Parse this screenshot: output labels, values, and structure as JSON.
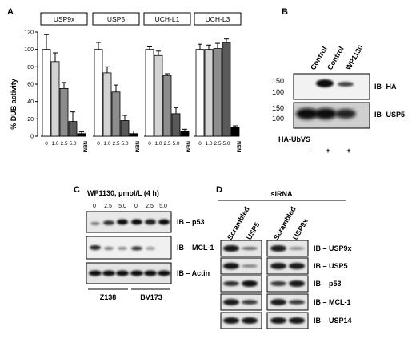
{
  "panel_a": {
    "letter": "A",
    "ylabel": "% DUB activity",
    "yticks": [
      "0",
      "20",
      "40",
      "60",
      "80",
      "100",
      "120"
    ],
    "groups": [
      {
        "name": "USP9x",
        "values": [
          100,
          86,
          55,
          17,
          3
        ],
        "errors": [
          17,
          10,
          7,
          11,
          2
        ]
      },
      {
        "name": "USP5",
        "values": [
          100,
          73,
          51,
          18,
          3
        ],
        "errors": [
          8,
          7,
          8,
          6,
          3
        ]
      },
      {
        "name": "UCH-L1",
        "values": [
          100,
          93,
          70,
          26,
          6
        ],
        "errors": [
          3,
          5,
          2,
          7,
          2
        ]
      },
      {
        "name": "UCH-L3",
        "values": [
          100,
          100,
          101,
          108,
          10
        ],
        "errors": [
          6,
          5,
          6,
          4,
          2
        ]
      }
    ],
    "xticks": [
      "0",
      "1.0",
      "2.5",
      "5.0",
      "NEM"
    ]
  },
  "chart_data": {
    "type": "bar",
    "ylabel": "% DUB activity",
    "ylim": [
      0,
      120
    ],
    "categories": [
      "0",
      "1.0",
      "2.5",
      "5.0",
      "NEM"
    ],
    "series": [
      {
        "name": "USP9x",
        "values": [
          100,
          86,
          55,
          17,
          3
        ]
      },
      {
        "name": "USP5",
        "values": [
          100,
          73,
          51,
          18,
          3
        ]
      },
      {
        "name": "UCH-L1",
        "values": [
          100,
          93,
          70,
          26,
          6
        ]
      },
      {
        "name": "UCH-L3",
        "values": [
          100,
          100,
          101,
          108,
          10
        ]
      }
    ],
    "colors": [
      "#ffffff",
      "#d3d3d3",
      "#8c8c8c",
      "#595959",
      "#000000"
    ]
  },
  "panel_b": {
    "letter": "B",
    "lanes": [
      "Control",
      "Control",
      "WP1130"
    ],
    "mw": [
      "150",
      "100",
      "150",
      "100"
    ],
    "blot1": "IB- HA",
    "blot2": "IB- USP5",
    "treatment_label": "HA-UbVS",
    "treatment": [
      "-",
      "+",
      "+"
    ]
  },
  "panel_c": {
    "letter": "C",
    "title": "WP1130, μmol/L (4 h)",
    "doses": [
      "0",
      "2.5",
      "5.0",
      "0",
      "2.5",
      "5.0"
    ],
    "blots": [
      "IB – p53",
      "IB – MCL-1",
      "IB – Actin"
    ],
    "cell_lines": [
      "Z138",
      "BV173"
    ]
  },
  "panel_d": {
    "letter": "D",
    "title": "siRNA",
    "lanes": [
      "Scrambled",
      "USP5",
      "Scrambled",
      "USP9x"
    ],
    "blots": [
      "IB – USP9x",
      "IB – USP5",
      "IB – p53",
      "IB – MCL-1",
      "IB – USP14"
    ]
  }
}
